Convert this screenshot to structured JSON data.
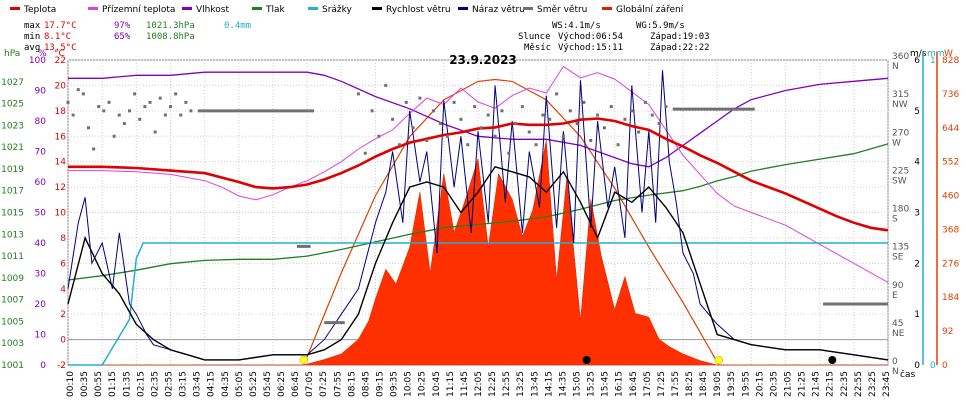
{
  "chart_data": {
    "type": "line",
    "title": "23.9.2023",
    "xlabel": "čas",
    "legend": [
      {
        "label": "Teplota",
        "color": "#e00000"
      },
      {
        "label": "Přízemní teplota",
        "color": "#e040e0"
      },
      {
        "label": "Vlhkost",
        "color": "#8000c0"
      },
      {
        "label": "Tlak",
        "color": "#208020"
      },
      {
        "label": "Srážky",
        "color": "#20b0d0"
      },
      {
        "label": "Rychlost větru",
        "color": "#000000"
      },
      {
        "label": "Náraz větru",
        "color": "#000080"
      },
      {
        "label": "Směr větru",
        "color": "#707070"
      },
      {
        "label": "Globální záření",
        "color": "#e02000"
      }
    ],
    "stats": {
      "max": {
        "label": "max",
        "temp": "17.7°C",
        "hum": "97%",
        "press": "1021.3hPa",
        "rain": "0.4mm"
      },
      "min": {
        "label": "min",
        "temp": "8.1°C",
        "hum": "65%",
        "press": "1008.8hPa"
      },
      "avg": {
        "label": "avg",
        "temp": "13.5°C"
      }
    },
    "wind_info": {
      "ws": "WS:4.1m/s",
      "wg": "WG:5.9m/s"
    },
    "sun": {
      "label": "Slunce",
      "rise": "Východ:06:54",
      "set": "Západ:19:03"
    },
    "moon": {
      "label": "Měsíc",
      "rise": "Východ:15:11",
      "set": "Západ:22:22"
    },
    "axes": {
      "press": {
        "unit": "hPa",
        "min": 1001,
        "max": 1029,
        "ticks": [
          "1001",
          "1003",
          "1005",
          "1007",
          "1009",
          "1011",
          "1013",
          "1015",
          "1017",
          "1019",
          "1021",
          "1023",
          "1025",
          "1027"
        ]
      },
      "hum": {
        "unit": "%",
        "min": 0,
        "max": 100,
        "ticks": [
          "0",
          "10",
          "20",
          "30",
          "40",
          "50",
          "60",
          "70",
          "80",
          "90",
          "100"
        ]
      },
      "temp": {
        "unit": "°C",
        "min": -2,
        "max": 22,
        "ticks": [
          "-2",
          "0",
          "2",
          "4",
          "6",
          "8",
          "10",
          "12",
          "14",
          "16",
          "18",
          "20",
          "22"
        ]
      },
      "dir": {
        "ticks": [
          "0",
          "45",
          "90",
          "135",
          "180",
          "225",
          "270",
          "315",
          "360"
        ],
        "labels": [
          "N",
          "NE",
          "E",
          "SE",
          "S",
          "SW",
          "W",
          "NW",
          "N"
        ]
      },
      "wind": {
        "unit": "m/s",
        "min": 0,
        "max": 6,
        "ticks": [
          "0",
          "1",
          "2",
          "3",
          "4",
          "5",
          "6"
        ]
      },
      "rain": {
        "unit": "mm",
        "min": 0,
        "max": 1,
        "ticks": [
          "0",
          "1"
        ]
      },
      "rad": {
        "unit": "W",
        "min": 0,
        "max": 828,
        "ticks": [
          "0",
          "92",
          "184",
          "276",
          "368",
          "460",
          "552",
          "644",
          "736",
          "828"
        ]
      },
      "time_ticks": [
        "00:10",
        "00:35",
        "00:55",
        "01:15",
        "01:35",
        "02:15",
        "02:35",
        "02:55",
        "03:15",
        "03:45",
        "04:15",
        "04:35",
        "05:05",
        "05:25",
        "05:45",
        "06:25",
        "06:45",
        "07:05",
        "07:25",
        "07:55",
        "08:15",
        "08:45",
        "09:15",
        "09:35",
        "10:05",
        "10:25",
        "10:45",
        "11:15",
        "11:45",
        "12:05",
        "12:25",
        "12:55",
        "13:25",
        "13:45",
        "14:15",
        "14:35",
        "15:05",
        "15:25",
        "15:45",
        "16:15",
        "16:45",
        "17:05",
        "17:25",
        "17:55",
        "18:25",
        "18:45",
        "19:05",
        "19:35",
        "19:55",
        "20:15",
        "20:35",
        "21:05",
        "21:25",
        "21:45",
        "22:15",
        "22:35",
        "22:55",
        "23:25",
        "23:45"
      ]
    },
    "series": {
      "temp": {
        "t": [
          0,
          1,
          2,
          3,
          4,
          5,
          5.5,
          6,
          6.5,
          7,
          7.5,
          8,
          8.5,
          9,
          9.5,
          10,
          10.5,
          11,
          11.5,
          12,
          12.5,
          13,
          13.5,
          14,
          14.5,
          15,
          15.5,
          16,
          16.5,
          17,
          17.5,
          18,
          18.5,
          19,
          19.5,
          20,
          20.5,
          21,
          21.5,
          22,
          22.5,
          23,
          23.5,
          24
        ],
        "v": [
          13.6,
          13.6,
          13.5,
          13.3,
          13.1,
          12.4,
          12,
          11.9,
          12,
          12.2,
          12.6,
          13.1,
          13.7,
          14.4,
          15,
          15.5,
          15.8,
          16.1,
          16.3,
          16.6,
          16.7,
          17,
          16.9,
          16.9,
          17,
          17.3,
          17.4,
          17.2,
          16.8,
          16.5,
          15.8,
          15.2,
          14.5,
          13.9,
          13.2,
          12.5,
          12,
          11.5,
          10.9,
          10.3,
          9.7,
          9.2,
          8.8,
          8.6
        ]
      },
      "ground": {
        "t": [
          0,
          1,
          2,
          3,
          4,
          4.5,
          5,
          5.5,
          6,
          6.5,
          7,
          7.5,
          8,
          8.5,
          9,
          9.5,
          10,
          10.5,
          11,
          11.5,
          12,
          12.5,
          13,
          13.5,
          14,
          14.5,
          15,
          15.5,
          16,
          16.5,
          17,
          17.5,
          18,
          18.5,
          19,
          19.5,
          20,
          21,
          22,
          23,
          24
        ],
        "v": [
          13.3,
          13.3,
          13.2,
          13,
          12.5,
          12,
          11.3,
          11,
          11.4,
          12,
          12.5,
          13.2,
          14,
          15,
          15.8,
          16.5,
          17.8,
          19,
          18.5,
          19.8,
          18.7,
          18.2,
          19.2,
          19.8,
          19.4,
          21.5,
          20.6,
          21,
          20.5,
          19.5,
          18.5,
          16.5,
          14.5,
          13,
          11.5,
          10.5,
          10,
          9,
          7.5,
          6,
          4.5
        ]
      },
      "hum": {
        "t": [
          0,
          1,
          2,
          3,
          4,
          5,
          6,
          7,
          7.5,
          8,
          9,
          10,
          11,
          12,
          13,
          14,
          15,
          16,
          16.5,
          17,
          17.5,
          18,
          18.5,
          19,
          19.5,
          20,
          21,
          22,
          23,
          24
        ],
        "v": [
          94,
          94,
          95,
          95,
          96,
          96,
          96,
          96,
          95,
          93,
          88,
          84,
          79,
          75,
          74,
          74,
          72,
          68,
          66,
          65,
          68,
          72,
          76,
          80,
          84,
          87,
          90,
          92,
          93,
          94
        ]
      },
      "press": {
        "t": [
          0,
          1,
          2,
          3,
          4,
          5,
          6,
          7,
          8,
          9,
          10,
          11,
          12,
          13,
          14,
          15,
          16,
          17,
          18,
          18.5,
          19,
          19.5,
          20,
          21,
          22,
          23,
          24
        ],
        "v": [
          1008.8,
          1009.2,
          1009.7,
          1010.3,
          1010.6,
          1010.7,
          1010.7,
          1011,
          1011.6,
          1012.3,
          1013,
          1013.6,
          1013.9,
          1014.2,
          1014.6,
          1015.3,
          1016.1,
          1016.6,
          1017,
          1017.4,
          1017.9,
          1018.3,
          1018.8,
          1019.4,
          1019.9,
          1020.4,
          1021.3
        ]
      },
      "rain": {
        "t": [
          0,
          1,
          1.8,
          2,
          2.2,
          24
        ],
        "v": [
          0,
          0,
          0.15,
          0.35,
          0.4,
          0.4
        ]
      },
      "wind": {
        "t": [
          0,
          0.5,
          1,
          1.5,
          2,
          2.5,
          3,
          3.5,
          4,
          5,
          6,
          7,
          7.5,
          8,
          8.5,
          9,
          9.5,
          10,
          10.5,
          11,
          11.5,
          12,
          12.5,
          13,
          13.5,
          14,
          14.5,
          15,
          15.5,
          16,
          16.5,
          17,
          17.5,
          18,
          18.5,
          19,
          20,
          21,
          22,
          23,
          24
        ],
        "v": [
          1.2,
          2.5,
          1.8,
          1.4,
          0.8,
          0.5,
          0.3,
          0.2,
          0.1,
          0.1,
          0.2,
          0.2,
          0.3,
          0.5,
          1,
          2,
          2.8,
          3.5,
          3.6,
          3.5,
          3,
          3.4,
          3.9,
          3.8,
          3.7,
          3.4,
          3.8,
          3.2,
          2.5,
          3.4,
          3.2,
          3.5,
          3.1,
          2.6,
          1.6,
          0.6,
          0.4,
          0.3,
          0.3,
          0.2,
          0.1
        ]
      },
      "gust": {
        "t": [
          0,
          0.3,
          0.5,
          0.7,
          1,
          1.3,
          1.5,
          1.8,
          2,
          2.3,
          2.5,
          3,
          3.5,
          4,
          5,
          6,
          7,
          7.5,
          8,
          8.5,
          9,
          9.3,
          9.5,
          9.8,
          10,
          10.3,
          10.5,
          10.8,
          11,
          11.3,
          11.5,
          11.8,
          12,
          12.3,
          12.5,
          12.8,
          13,
          13.3,
          13.5,
          13.8,
          14,
          14.3,
          14.5,
          14.8,
          15,
          15.3,
          15.5,
          15.8,
          16,
          16.3,
          16.5,
          16.8,
          17,
          17.2,
          17.4,
          17.6,
          17.8,
          18,
          18.3,
          18.5,
          19,
          19.5,
          20,
          21,
          22,
          23,
          24
        ],
        "v": [
          1.5,
          2.8,
          3.3,
          2,
          2.4,
          1.5,
          2.6,
          1.2,
          1,
          0.6,
          0.4,
          0.3,
          0.2,
          0.1,
          0.1,
          0.2,
          0.2,
          0.5,
          1,
          1.5,
          2.8,
          3.4,
          4.2,
          2.8,
          5,
          3.6,
          4.2,
          2.2,
          5.2,
          3.5,
          4.5,
          2.6,
          4.6,
          2.8,
          5.5,
          3.2,
          4.8,
          2.6,
          4.2,
          3.1,
          5.3,
          2.7,
          4.6,
          2.4,
          5.6,
          2.7,
          4.8,
          3.1,
          3.9,
          2.5,
          5.5,
          3,
          4.6,
          2.8,
          5.8,
          4,
          3.2,
          2.2,
          1.8,
          1.2,
          0.8,
          0.5,
          0.4,
          0.3,
          0.3,
          0.2,
          0.1
        ]
      },
      "rad": {
        "t": [
          0,
          6.9,
          7.5,
          8,
          8.5,
          8.8,
          9,
          9.3,
          9.6,
          10,
          10.3,
          10.6,
          11,
          11.3,
          11.6,
          12,
          12.3,
          12.6,
          13,
          13.3,
          13.6,
          14,
          14.3,
          14.6,
          15,
          15.3,
          15.6,
          16,
          16.3,
          16.6,
          17,
          17.3,
          17.6,
          18,
          18.5,
          19,
          24
        ],
        "v": [
          0,
          0,
          15,
          30,
          70,
          120,
          180,
          260,
          220,
          320,
          470,
          250,
          520,
          360,
          440,
          560,
          320,
          520,
          450,
          350,
          420,
          610,
          230,
          510,
          120,
          450,
          300,
          150,
          240,
          140,
          130,
          70,
          50,
          30,
          12,
          0,
          0
        ]
      },
      "clear": {
        "t": [
          6.9,
          8,
          9,
          10,
          11,
          12,
          12.5,
          13,
          14,
          15,
          16,
          17,
          18,
          19.05
        ],
        "v": [
          0,
          250,
          460,
          620,
          720,
          770,
          775,
          770,
          720,
          620,
          480,
          320,
          170,
          0
        ]
      },
      "dir_segments": [
        {
          "from": 3.8,
          "to": 7.2,
          "deg": 300
        },
        {
          "from": 6.7,
          "to": 7.1,
          "deg": 140
        },
        {
          "from": 7.5,
          "to": 8.1,
          "deg": 50
        },
        {
          "from": 17.7,
          "to": 20.1,
          "deg": 302
        },
        {
          "from": 22.1,
          "to": 24,
          "deg": 72
        }
      ],
      "dir_points": [
        {
          "t": [
            0,
            0.15,
            0.3,
            0.45,
            0.6,
            0.75,
            0.9,
            1.05,
            1.2,
            1.35,
            1.5,
            1.65,
            1.8,
            1.95,
            2.1,
            2.25,
            2.4,
            2.55,
            2.7,
            2.85,
            3,
            3.15,
            3.3,
            3.45,
            3.6
          ],
          "v": [
            310,
            295,
            325,
            320,
            280,
            255,
            305,
            300,
            310,
            270,
            295,
            285,
            300,
            320,
            290,
            305,
            310,
            275,
            315,
            295,
            305,
            320,
            295,
            310,
            300
          ]
        },
        {
          "t": [
            8.5,
            8.7,
            8.9,
            9.1,
            9.3,
            9.5,
            9.7,
            9.9,
            10.1,
            10.3,
            10.5,
            10.7,
            10.9,
            11.1,
            11.3,
            11.5,
            11.7,
            11.9,
            12.1,
            12.3,
            12.5,
            12.7,
            12.9,
            13.1,
            13.3,
            13.5,
            13.7,
            13.9,
            14.1,
            14.3,
            14.5,
            14.7,
            14.9,
            15.1,
            15.3,
            15.5,
            15.7,
            15.9,
            16.1,
            16.3,
            16.5,
            16.7,
            16.9,
            17.1,
            17.3,
            17.5
          ],
          "v": [
            320,
            250,
            300,
            270,
            330,
            290,
            260,
            310,
            280,
            315,
            265,
            300,
            285,
            270,
            310,
            290,
            260,
            305,
            280,
            295,
            270,
            300,
            250,
            285,
            305,
            275,
            260,
            295,
            290,
            320,
            270,
            300,
            285,
            310,
            265,
            295,
            280,
            305,
            260,
            290,
            300,
            275,
            310,
            295,
            285,
            305
          ]
        }
      ],
      "sun_markers": [
        {
          "t": 6.9,
          "color": "#ffff00"
        },
        {
          "t": 19.05,
          "color": "#ffff00"
        }
      ],
      "moon_markers": [
        {
          "t": 15.18,
          "color": "#000000"
        },
        {
          "t": 22.37,
          "color": "#000000"
        }
      ]
    }
  }
}
